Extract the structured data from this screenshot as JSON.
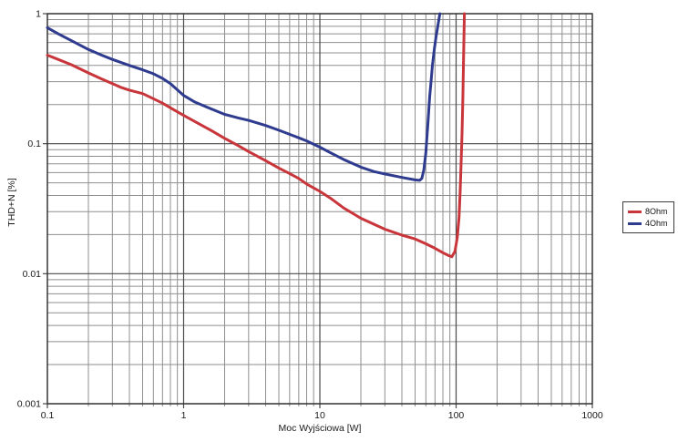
{
  "page": {
    "background": "#ffffff"
  },
  "chart_data": {
    "type": "line",
    "title": "",
    "xlabel": "Moc Wyjściowa [W]",
    "ylabel": "THD+N [%]",
    "x_scale": "log",
    "y_scale": "log",
    "xlim": [
      0.1,
      1000
    ],
    "ylim": [
      0.001,
      1
    ],
    "x_ticks": [
      {
        "value": 0.1,
        "label": "0.1"
      },
      {
        "value": 1,
        "label": "1"
      },
      {
        "value": 10,
        "label": "10"
      },
      {
        "value": 100,
        "label": "100"
      },
      {
        "value": 1000,
        "label": "1000"
      }
    ],
    "y_ticks": [
      {
        "value": 1,
        "label": "1"
      },
      {
        "value": 0.1,
        "label": "0.1"
      },
      {
        "value": 0.01,
        "label": "0.01"
      },
      {
        "value": 0.001,
        "label": "0.001"
      }
    ],
    "grid": {
      "minor": true,
      "major": true,
      "minor_color": "#8f8f8f",
      "major_color": "#4a4a4a"
    },
    "legend_position": "right-outside-middle",
    "series": [
      {
        "name": "8Ohm",
        "color": "#c8353a",
        "points": [
          [
            0.1,
            0.48
          ],
          [
            0.12,
            0.445
          ],
          [
            0.15,
            0.405
          ],
          [
            0.2,
            0.35
          ],
          [
            0.25,
            0.315
          ],
          [
            0.3,
            0.29
          ],
          [
            0.35,
            0.27
          ],
          [
            0.4,
            0.258
          ],
          [
            0.5,
            0.243
          ],
          [
            0.6,
            0.222
          ],
          [
            0.7,
            0.205
          ],
          [
            0.85,
            0.182
          ],
          [
            1,
            0.165
          ],
          [
            1.3,
            0.142
          ],
          [
            1.6,
            0.126
          ],
          [
            2,
            0.11
          ],
          [
            2.5,
            0.097
          ],
          [
            3,
            0.087
          ],
          [
            4,
            0.074
          ],
          [
            5,
            0.065
          ],
          [
            6,
            0.059
          ],
          [
            7,
            0.054
          ],
          [
            8,
            0.049
          ],
          [
            10,
            0.043
          ],
          [
            12,
            0.038
          ],
          [
            15,
            0.032
          ],
          [
            20,
            0.0267
          ],
          [
            25,
            0.024
          ],
          [
            30,
            0.022
          ],
          [
            40,
            0.0198
          ],
          [
            50,
            0.0185
          ],
          [
            60,
            0.017
          ],
          [
            70,
            0.0157
          ],
          [
            80,
            0.0145
          ],
          [
            88,
            0.0138
          ],
          [
            93,
            0.0135
          ],
          [
            98,
            0.0148
          ],
          [
            102,
            0.019
          ],
          [
            105,
            0.027
          ],
          [
            107,
            0.042
          ],
          [
            109,
            0.075
          ],
          [
            110.5,
            0.12
          ],
          [
            112,
            0.22
          ],
          [
            113,
            0.35
          ],
          [
            114,
            0.6
          ],
          [
            115,
            1.0
          ]
        ]
      },
      {
        "name": "4Ohm",
        "color": "#2e3b8e",
        "points": [
          [
            0.1,
            0.78
          ],
          [
            0.12,
            0.7
          ],
          [
            0.15,
            0.62
          ],
          [
            0.2,
            0.53
          ],
          [
            0.25,
            0.48
          ],
          [
            0.3,
            0.445
          ],
          [
            0.4,
            0.4
          ],
          [
            0.5,
            0.37
          ],
          [
            0.6,
            0.345
          ],
          [
            0.7,
            0.318
          ],
          [
            0.8,
            0.29
          ],
          [
            1,
            0.235
          ],
          [
            1.2,
            0.21
          ],
          [
            1.5,
            0.19
          ],
          [
            2,
            0.168
          ],
          [
            2.5,
            0.158
          ],
          [
            3,
            0.151
          ],
          [
            4,
            0.138
          ],
          [
            5,
            0.127
          ],
          [
            6,
            0.118
          ],
          [
            7,
            0.111
          ],
          [
            8,
            0.105
          ],
          [
            10,
            0.094
          ],
          [
            12,
            0.085
          ],
          [
            15,
            0.0755
          ],
          [
            20,
            0.066
          ],
          [
            25,
            0.061
          ],
          [
            30,
            0.0585
          ],
          [
            40,
            0.055
          ],
          [
            50,
            0.0527
          ],
          [
            54,
            0.0522
          ],
          [
            56,
            0.054
          ],
          [
            58,
            0.063
          ],
          [
            60,
            0.085
          ],
          [
            61,
            0.11
          ],
          [
            62,
            0.14
          ],
          [
            63,
            0.18
          ],
          [
            64,
            0.23
          ],
          [
            65.5,
            0.3
          ],
          [
            67,
            0.4
          ],
          [
            69,
            0.52
          ],
          [
            71,
            0.65
          ],
          [
            74,
            0.85
          ],
          [
            76,
            1.0
          ]
        ]
      }
    ]
  }
}
